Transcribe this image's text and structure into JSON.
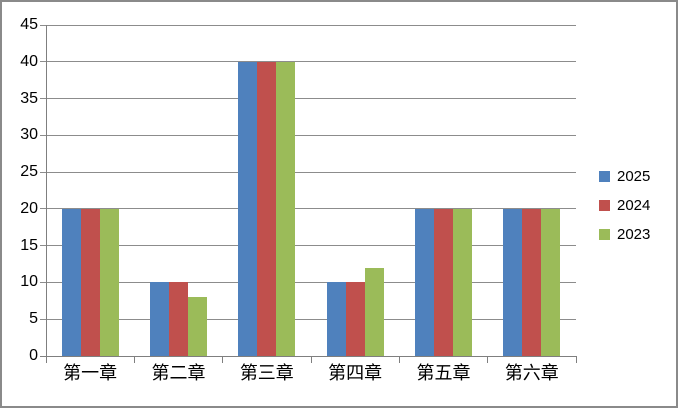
{
  "chart_data": {
    "type": "bar",
    "title": "",
    "xlabel": "",
    "ylabel": "",
    "categories": [
      "第一章",
      "第二章",
      "第三章",
      "第四章",
      "第五章",
      "第六章"
    ],
    "series": [
      {
        "name": "2025",
        "color": "#4F81BD",
        "values": [
          20,
          10,
          40,
          10,
          20,
          20
        ]
      },
      {
        "name": "2024",
        "color": "#C0504D",
        "values": [
          20,
          10,
          40,
          10,
          20,
          20
        ]
      },
      {
        "name": "2023",
        "color": "#9BBB59",
        "values": [
          20,
          8,
          40,
          12,
          20,
          20
        ]
      }
    ],
    "ylim": [
      0,
      45
    ],
    "ytick_step": 5,
    "yticks": [
      0,
      5,
      10,
      15,
      20,
      25,
      30,
      35,
      40,
      45
    ],
    "grid": true,
    "legend_position": "right"
  },
  "colors": {
    "background": "#FFFFFF",
    "border": "#8A8A8A",
    "gridline": "#8C8C8C",
    "axis": "#7F7F7F",
    "text": "#000000"
  }
}
